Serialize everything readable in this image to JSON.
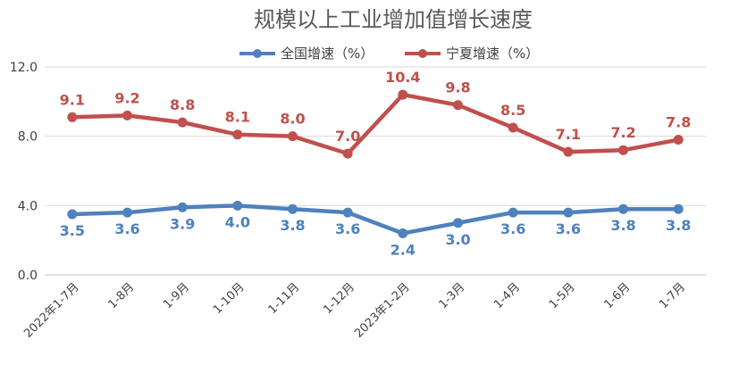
{
  "chart_data": {
    "type": "line",
    "title": "规模以上工业增加值增长速度",
    "categories": [
      "2022年1-7月",
      "1-8月",
      "1-9月",
      "1-10月",
      "1-11月",
      "1-12月",
      "2023年1-2月",
      "1-3月",
      "1-4月",
      "1-5月",
      "1-6月",
      "1-7月"
    ],
    "series": [
      {
        "name": "全国增速（%）",
        "color": "#4F81BD",
        "values": [
          3.5,
          3.6,
          3.9,
          4.0,
          3.8,
          3.6,
          2.4,
          3.0,
          3.6,
          3.6,
          3.8,
          3.8
        ]
      },
      {
        "name": "宁夏增速（%）",
        "color": "#C0504D",
        "values": [
          9.1,
          9.2,
          8.8,
          8.1,
          8.0,
          7.0,
          10.4,
          9.8,
          8.5,
          7.1,
          7.2,
          7.8
        ]
      }
    ],
    "yticks": [
      "0.0",
      "4.0",
      "8.0",
      "12.0"
    ],
    "ylim": [
      0,
      12
    ],
    "grid": true,
    "legend": "top-center"
  }
}
